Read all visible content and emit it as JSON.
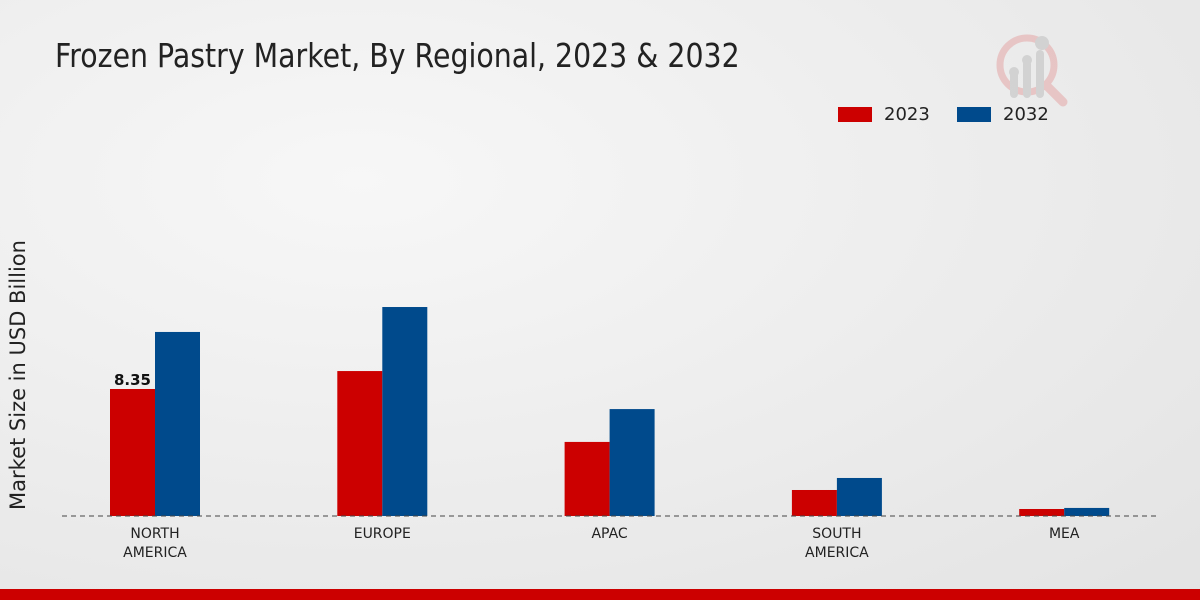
{
  "chart_data": {
    "type": "bar",
    "title": "Frozen Pastry Market, By Regional, 2023 & 2032",
    "xlabel": "",
    "ylabel": "Market Size in USD Billion",
    "categories": [
      "NORTH AMERICA",
      "EUROPE",
      "APAC",
      "SOUTH AMERICA",
      "MEA"
    ],
    "category_lines": [
      [
        "NORTH",
        "AMERICA"
      ],
      [
        "EUROPE"
      ],
      [
        "APAC"
      ],
      [
        "SOUTH",
        "AMERICA"
      ],
      [
        "MEA"
      ]
    ],
    "series": [
      {
        "name": "2023",
        "color": "#cc0000",
        "values": [
          8.35,
          9.53,
          4.87,
          1.71,
          0.46
        ]
      },
      {
        "name": "2032",
        "color": "#004a8c",
        "values": [
          12.1,
          13.74,
          7.03,
          2.5,
          0.53
        ]
      }
    ],
    "data_labels": [
      {
        "series": "2023",
        "category": "NORTH AMERICA",
        "text": "8.35"
      }
    ],
    "ylim": [
      0,
      16
    ],
    "grid": false,
    "legend_position": "top-right"
  }
}
